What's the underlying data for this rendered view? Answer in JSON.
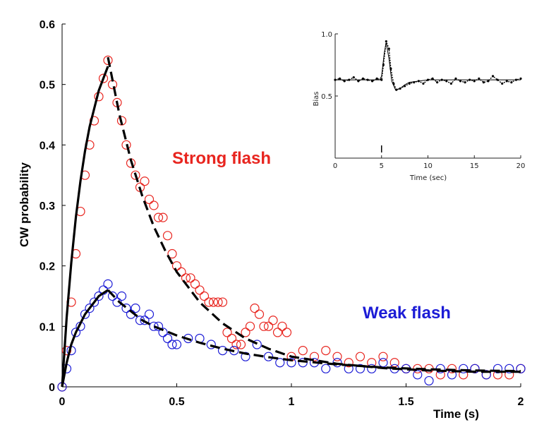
{
  "chart_data": [
    {
      "type": "scatter",
      "xlabel": "Time (s)",
      "ylabel": "CW probability",
      "xlim": [
        0,
        2
      ],
      "ylim": [
        0,
        0.6
      ],
      "x_ticks": [
        "0",
        "0.5",
        "1",
        "1.5",
        "2"
      ],
      "y_ticks": [
        "0",
        "0.1",
        "0.2",
        "0.3",
        "0.4",
        "0.5",
        "0.6"
      ],
      "grid": false,
      "annotations": [
        {
          "text": "Strong flash",
          "color": "#e8251f"
        },
        {
          "text": "Weak flash",
          "color": "#1c1cd6"
        }
      ],
      "series": [
        {
          "color": "#e8251f",
          "marker": "open-circle",
          "x": [
            0.0,
            0.02,
            0.04,
            0.06,
            0.08,
            0.1,
            0.12,
            0.14,
            0.16,
            0.18,
            0.2,
            0.22,
            0.24,
            0.26,
            0.28,
            0.3,
            0.32,
            0.34,
            0.36,
            0.38,
            0.4,
            0.42,
            0.44,
            0.46,
            0.48,
            0.5,
            0.52,
            0.54,
            0.56,
            0.58,
            0.6,
            0.62,
            0.64,
            0.66,
            0.68,
            0.7,
            0.72,
            0.74,
            0.76,
            0.78,
            0.8,
            0.82,
            0.84,
            0.86,
            0.88,
            0.9,
            0.92,
            0.94,
            0.96,
            0.98,
            1.0,
            1.05,
            1.1,
            1.15,
            1.2,
            1.25,
            1.3,
            1.35,
            1.4,
            1.45,
            1.5,
            1.55,
            1.6,
            1.65,
            1.7,
            1.75,
            1.8,
            1.85,
            1.9,
            1.95,
            2.0
          ],
          "y": [
            0.0,
            0.06,
            0.14,
            0.22,
            0.29,
            0.35,
            0.4,
            0.44,
            0.48,
            0.51,
            0.54,
            0.5,
            0.47,
            0.44,
            0.4,
            0.37,
            0.35,
            0.33,
            0.34,
            0.31,
            0.3,
            0.28,
            0.28,
            0.25,
            0.22,
            0.2,
            0.19,
            0.18,
            0.18,
            0.17,
            0.16,
            0.15,
            0.14,
            0.14,
            0.14,
            0.14,
            0.09,
            0.08,
            0.07,
            0.07,
            0.09,
            0.1,
            0.13,
            0.12,
            0.1,
            0.1,
            0.11,
            0.09,
            0.1,
            0.09,
            0.05,
            0.06,
            0.05,
            0.06,
            0.05,
            0.04,
            0.05,
            0.04,
            0.05,
            0.04,
            0.03,
            0.03,
            0.03,
            0.02,
            0.03,
            0.02,
            0.03,
            0.02,
            0.02,
            0.02,
            0.03
          ]
        },
        {
          "color": "#1c1cd6",
          "marker": "open-circle",
          "x": [
            0.0,
            0.02,
            0.04,
            0.06,
            0.08,
            0.1,
            0.12,
            0.14,
            0.16,
            0.18,
            0.2,
            0.22,
            0.24,
            0.26,
            0.28,
            0.3,
            0.32,
            0.34,
            0.36,
            0.38,
            0.4,
            0.42,
            0.44,
            0.46,
            0.48,
            0.5,
            0.55,
            0.6,
            0.65,
            0.7,
            0.75,
            0.8,
            0.85,
            0.9,
            0.95,
            1.0,
            1.05,
            1.1,
            1.15,
            1.2,
            1.25,
            1.3,
            1.35,
            1.4,
            1.45,
            1.5,
            1.55,
            1.6,
            1.65,
            1.7,
            1.75,
            1.8,
            1.85,
            1.9,
            1.95,
            2.0
          ],
          "y": [
            0.0,
            0.03,
            0.06,
            0.09,
            0.1,
            0.12,
            0.13,
            0.14,
            0.15,
            0.16,
            0.17,
            0.15,
            0.14,
            0.15,
            0.13,
            0.12,
            0.13,
            0.11,
            0.11,
            0.12,
            0.1,
            0.1,
            0.09,
            0.08,
            0.07,
            0.07,
            0.08,
            0.08,
            0.07,
            0.06,
            0.06,
            0.05,
            0.07,
            0.05,
            0.04,
            0.04,
            0.04,
            0.04,
            0.03,
            0.04,
            0.03,
            0.03,
            0.03,
            0.04,
            0.03,
            0.03,
            0.02,
            0.01,
            0.03,
            0.02,
            0.03,
            0.03,
            0.02,
            0.03,
            0.03,
            0.03
          ]
        },
        {
          "style": "solid-line",
          "color": "#000000",
          "x": [
            0.0,
            0.02,
            0.04,
            0.06,
            0.08,
            0.1,
            0.12,
            0.14,
            0.16,
            0.18,
            0.2
          ],
          "y": [
            0.0,
            0.115,
            0.205,
            0.28,
            0.34,
            0.39,
            0.43,
            0.46,
            0.49,
            0.51,
            0.53
          ]
        },
        {
          "style": "dashed-line",
          "color": "#000000",
          "x": [
            0.2,
            0.25,
            0.3,
            0.35,
            0.4,
            0.45,
            0.5,
            0.6,
            0.7,
            0.8,
            0.9,
            1.0,
            1.2,
            1.4,
            1.6,
            1.8,
            2.0
          ],
          "y": [
            0.545,
            0.45,
            0.375,
            0.315,
            0.265,
            0.225,
            0.19,
            0.14,
            0.105,
            0.08,
            0.063,
            0.05,
            0.038,
            0.031,
            0.027,
            0.025,
            0.025
          ]
        },
        {
          "style": "solid-line",
          "color": "#000000",
          "x": [
            0.0,
            0.02,
            0.04,
            0.06,
            0.08,
            0.1,
            0.12,
            0.14,
            0.16,
            0.18,
            0.2
          ],
          "y": [
            0.0,
            0.04,
            0.07,
            0.09,
            0.105,
            0.12,
            0.13,
            0.14,
            0.15,
            0.155,
            0.16
          ]
        },
        {
          "style": "dashed-line",
          "color": "#000000",
          "x": [
            0.2,
            0.25,
            0.3,
            0.35,
            0.4,
            0.5,
            0.6,
            0.7,
            0.8,
            0.9,
            1.0,
            1.2,
            1.4,
            1.6,
            1.8,
            2.0
          ],
          "y": [
            0.16,
            0.14,
            0.125,
            0.11,
            0.1,
            0.085,
            0.073,
            0.063,
            0.055,
            0.049,
            0.044,
            0.037,
            0.032,
            0.029,
            0.027,
            0.026
          ]
        }
      ]
    },
    {
      "type": "line",
      "xlabel": "Time (sec)",
      "ylabel": "Bias",
      "xlim": [
        0,
        20
      ],
      "ylim": [
        0,
        1.0
      ],
      "x_ticks": [
        "0",
        "5",
        "10",
        "15",
        "20"
      ],
      "y_ticks": [
        "0.5",
        "1.0"
      ],
      "grid": false,
      "series": [
        {
          "style": "dots",
          "color": "#000000",
          "x": [
            0,
            0.5,
            1,
            1.5,
            2,
            2.5,
            3,
            3.5,
            4,
            4.5,
            5,
            5.2,
            5.5,
            5.8,
            6,
            6.3,
            6.6,
            7,
            7.5,
            8,
            8.5,
            9,
            9.5,
            10,
            10.5,
            11,
            11.5,
            12,
            12.5,
            13,
            13.5,
            14,
            14.5,
            15,
            15.5,
            16,
            16.5,
            17,
            17.5,
            18,
            18.5,
            19,
            19.5,
            20
          ],
          "y": [
            0.63,
            0.64,
            0.62,
            0.63,
            0.65,
            0.62,
            0.64,
            0.63,
            0.62,
            0.64,
            0.63,
            0.75,
            0.94,
            0.88,
            0.72,
            0.6,
            0.55,
            0.56,
            0.58,
            0.6,
            0.61,
            0.62,
            0.6,
            0.63,
            0.64,
            0.61,
            0.63,
            0.62,
            0.6,
            0.64,
            0.62,
            0.61,
            0.63,
            0.62,
            0.64,
            0.61,
            0.62,
            0.66,
            0.63,
            0.6,
            0.62,
            0.61,
            0.63,
            0.64
          ]
        },
        {
          "style": "solid-line",
          "color": "#000000",
          "x": [
            0,
            4.8,
            5.0,
            5.3,
            5.5,
            5.8,
            6.1,
            6.5,
            7.0,
            7.5,
            8.0,
            9.0,
            10,
            12,
            15,
            20
          ],
          "y": [
            0.63,
            0.63,
            0.66,
            0.85,
            0.93,
            0.8,
            0.62,
            0.55,
            0.56,
            0.59,
            0.61,
            0.62,
            0.63,
            0.63,
            0.63,
            0.63
          ]
        }
      ],
      "stimulus_marker": {
        "x": 5
      }
    }
  ]
}
